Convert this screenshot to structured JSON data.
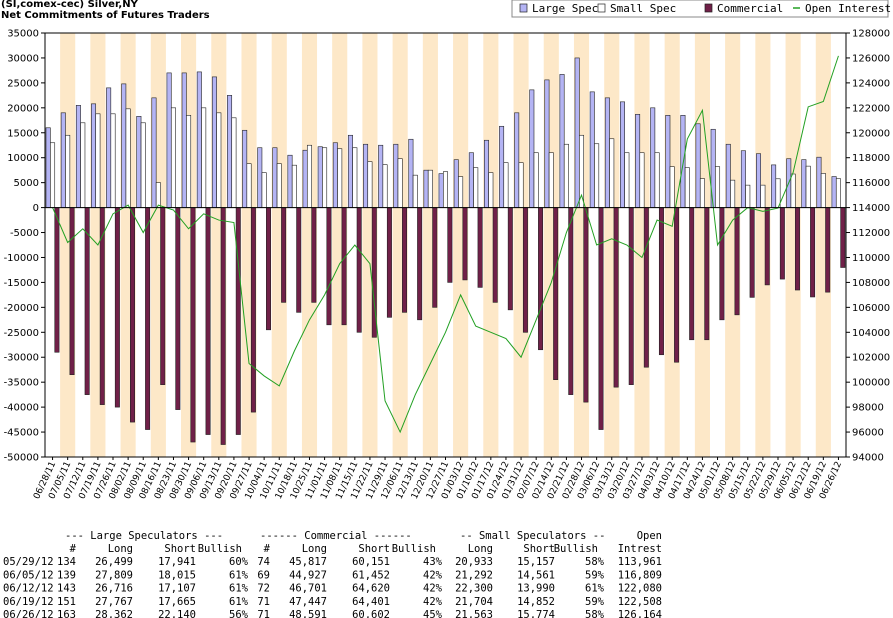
{
  "chart_data": {
    "type": "bar",
    "title": "(SI,comex-cec) Silver,NY",
    "subtitle": "Net Commitments of Futures Traders",
    "categories": [
      "06/28/11",
      "07/05/11",
      "07/12/11",
      "07/19/11",
      "07/26/11",
      "08/02/11",
      "08/09/11",
      "08/16/11",
      "08/23/11",
      "08/30/11",
      "09/06/11",
      "09/13/11",
      "09/20/11",
      "09/27/11",
      "10/04/11",
      "10/11/11",
      "10/18/11",
      "10/25/11",
      "11/01/11",
      "11/08/11",
      "11/15/11",
      "11/22/11",
      "11/29/11",
      "12/06/11",
      "12/13/11",
      "12/20/11",
      "12/27/11",
      "01/03/12",
      "01/10/12",
      "01/17/12",
      "01/24/12",
      "01/31/12",
      "02/07/12",
      "02/14/12",
      "02/21/12",
      "02/28/12",
      "03/06/12",
      "03/13/12",
      "03/20/12",
      "03/27/12",
      "04/03/12",
      "04/10/12",
      "04/17/12",
      "04/24/12",
      "05/01/12",
      "05/08/12",
      "05/15/12",
      "05/22/12",
      "05/29/12",
      "06/05/12",
      "06/12/12",
      "06/19/12",
      "06/26/12"
    ],
    "series": [
      {
        "name": "Large Spec",
        "color": "#b4b4f4",
        "values": [
          16000,
          19000,
          20500,
          20800,
          24000,
          24800,
          18300,
          22000,
          27000,
          27000,
          27200,
          26200,
          22500,
          15500,
          12000,
          12000,
          10500,
          11500,
          12200,
          13000,
          14500,
          12700,
          12500,
          12700,
          13700,
          7500,
          6800,
          9600,
          11000,
          13500,
          16300,
          19000,
          23600,
          25600,
          26700,
          30000,
          23200,
          22000,
          21200,
          18700,
          20000,
          18500,
          18500,
          16800,
          15700,
          12700,
          11400,
          10800,
          8558,
          9794,
          9609,
          10102,
          6222
        ]
      },
      {
        "name": "Small Spec",
        "color": "#ffffff",
        "values": [
          13000,
          14500,
          17000,
          18800,
          18800,
          19800,
          17000,
          5000,
          20000,
          18500,
          20000,
          19000,
          18000,
          8800,
          7000,
          8800,
          8500,
          12500,
          12000,
          11800,
          12000,
          9200,
          8600,
          9800,
          6500,
          7500,
          7200,
          6200,
          8000,
          7000,
          9000,
          9000,
          11000,
          11000,
          12700,
          14500,
          12800,
          13800,
          11000,
          11000,
          11000,
          8200,
          8000,
          5800,
          8200,
          5500,
          4500,
          4500,
          5776,
          6731,
          8310,
          6852,
          5789
        ]
      },
      {
        "name": "Commercial",
        "color": "#702048",
        "values": [
          -29000,
          -33500,
          -37500,
          -39500,
          -40000,
          -43000,
          -44500,
          -35500,
          -40500,
          -47000,
          -45500,
          -47500,
          -45500,
          -41000,
          -24500,
          -19000,
          -21000,
          -19000,
          -23500,
          -23500,
          -25000,
          -26000,
          -22000,
          -21000,
          -22500,
          -20000,
          -15000,
          -14500,
          -16000,
          -19000,
          -20500,
          -25000,
          -28500,
          -34500,
          -37500,
          -39000,
          -44500,
          -36000,
          -35500,
          -32000,
          -29500,
          -31000,
          -26500,
          -26500,
          -22500,
          -21500,
          -18000,
          -15500,
          -14334,
          -16525,
          -17919,
          -16954,
          -12011
        ]
      },
      {
        "name": "Open Interest",
        "color": "#22a022",
        "type": "line",
        "axis": "y2",
        "values": [
          114000,
          111200,
          112300,
          111000,
          113500,
          114200,
          112000,
          114200,
          113800,
          112300,
          113500,
          113000,
          112800,
          101500,
          100500,
          99700,
          102500,
          105000,
          107000,
          109500,
          111000,
          109500,
          98500,
          96000,
          99000,
          101500,
          104000,
          107000,
          104500,
          104000,
          103500,
          102000,
          105000,
          108000,
          112000,
          115000,
          111000,
          111500,
          111000,
          110000,
          113000,
          112500,
          119500,
          121800,
          111000,
          113000,
          114000,
          113700,
          113961,
          116809,
          122080,
          122508,
          126164
        ]
      }
    ],
    "ylim": [
      -50000,
      35000
    ],
    "yticks": [
      -50000,
      -45000,
      -40000,
      -35000,
      -30000,
      -25000,
      -20000,
      -15000,
      -10000,
      -5000,
      0,
      5000,
      10000,
      15000,
      20000,
      25000,
      30000,
      35000
    ],
    "y2lim": [
      94000,
      128000
    ],
    "y2ticks": [
      94000,
      96000,
      98000,
      100000,
      102000,
      104000,
      106000,
      108000,
      110000,
      112000,
      114000,
      116000,
      118000,
      120000,
      122000,
      124000,
      126000,
      128000
    ],
    "legend": "top-right"
  },
  "table": {
    "group_headers": [
      "--- Large Speculators ---",
      "------ Commercial ------",
      "-- Small Speculators --",
      "Open"
    ],
    "columns": [
      "#",
      "Long",
      "Short",
      "Bullish",
      "#",
      "Long",
      "Short",
      "Bullish",
      "Long",
      "Short",
      "Bullish",
      "Intrest"
    ],
    "rows": [
      [
        "05/29/12",
        "134",
        "26,499",
        "17,941",
        "60%",
        "74",
        "45,817",
        "60,151",
        "43%",
        "20,933",
        "15,157",
        "58%",
        "113,961"
      ],
      [
        "06/05/12",
        "139",
        "27,809",
        "18,015",
        "61%",
        "69",
        "44,927",
        "61,452",
        "42%",
        "21,292",
        "14,561",
        "59%",
        "116,809"
      ],
      [
        "06/12/12",
        "143",
        "26,716",
        "17,107",
        "61%",
        "72",
        "46,701",
        "64,620",
        "42%",
        "22,300",
        "13,990",
        "61%",
        "122,080"
      ],
      [
        "06/19/12",
        "151",
        "27,767",
        "17,665",
        "61%",
        "71",
        "47,447",
        "64,401",
        "42%",
        "21,704",
        "14,852",
        "59%",
        "122,508"
      ],
      [
        "06/26/12",
        "163",
        "28,362",
        "22,140",
        "56%",
        "71",
        "48,591",
        "60,602",
        "45%",
        "21,563",
        "15,774",
        "58%",
        "126,164"
      ]
    ]
  }
}
